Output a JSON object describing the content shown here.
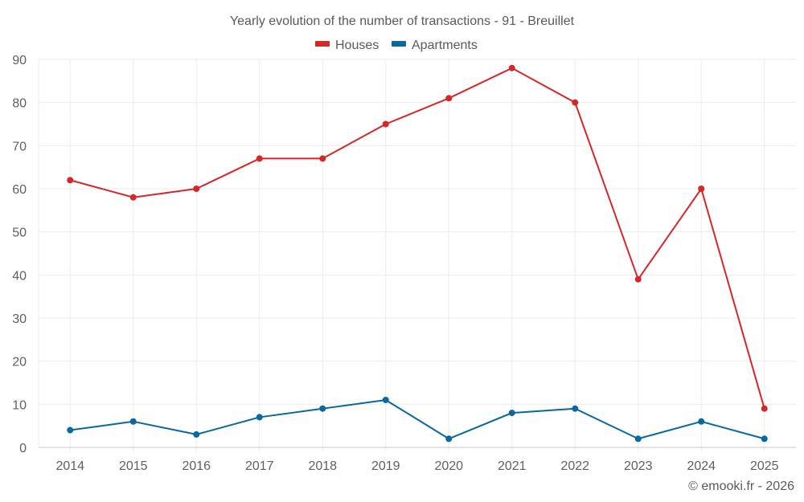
{
  "chart_data": {
    "type": "line",
    "title": "Yearly evolution of the number of transactions - 91 - Breuillet",
    "xlabel": "",
    "ylabel": "",
    "categories": [
      "2014",
      "2015",
      "2016",
      "2017",
      "2018",
      "2019",
      "2020",
      "2021",
      "2022",
      "2023",
      "2024",
      "2025"
    ],
    "ylim": [
      0,
      90
    ],
    "yticks": [
      0,
      10,
      20,
      30,
      40,
      50,
      60,
      70,
      80,
      90
    ],
    "grid": true,
    "legend_position": "top-center",
    "series": [
      {
        "name": "Houses",
        "color": "#d62728",
        "values": [
          62,
          58,
          60,
          67,
          67,
          75,
          81,
          88,
          80,
          39,
          60,
          9
        ]
      },
      {
        "name": "Apartments",
        "color": "#0868a0",
        "values": [
          4,
          6,
          3,
          7,
          9,
          11,
          2,
          8,
          9,
          2,
          6,
          2
        ]
      }
    ],
    "credit": "© emooki.fr - 2026"
  }
}
